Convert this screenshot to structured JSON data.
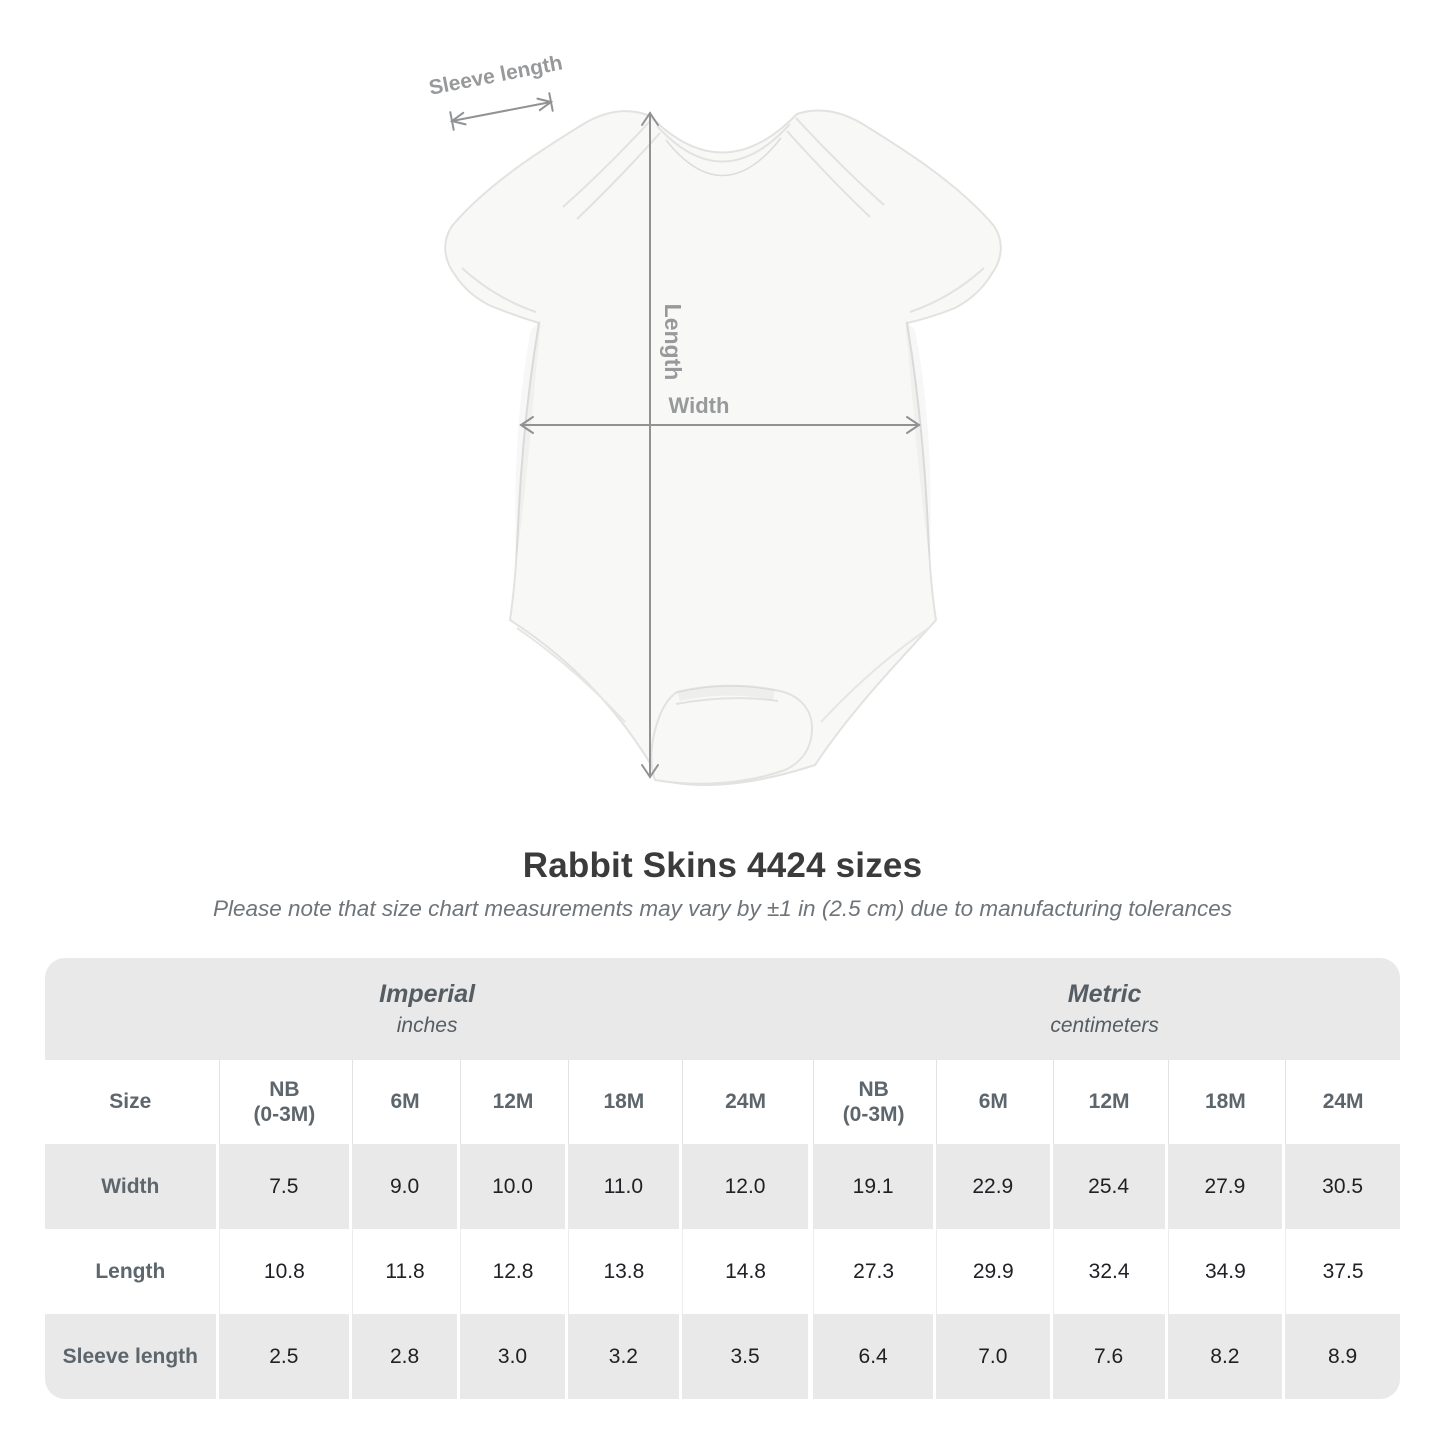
{
  "colors": {
    "table_shade": "#e9e9e9",
    "value_text": "#202124",
    "label_text": "#5d666c",
    "diagram_gray": "#97999b",
    "title_text": "#3b3b3b",
    "garment_fill": "#f8f8f7",
    "garment_line": "#e2e2e0"
  },
  "diagram": {
    "labels": {
      "sleeve": "Sleeve length",
      "length": "Length",
      "width": "Width"
    }
  },
  "heading": {
    "title": "Rabbit Skins 4424 sizes",
    "subtitle": "Please note that size chart measurements may vary by ±1 in (2.5 cm) due to manufacturing tolerances"
  },
  "size_table": {
    "unit_sections": [
      {
        "name": "Imperial",
        "unit": "inches"
      },
      {
        "name": "Metric",
        "unit": "centimeters"
      }
    ],
    "columns": [
      "Size",
      "NB\n(0-3M)",
      "6M",
      "12M",
      "18M",
      "24M",
      "NB\n(0-3M)",
      "6M",
      "12M",
      "18M",
      "24M"
    ],
    "rows": [
      {
        "label": "Width",
        "values": [
          "7.5",
          "9.0",
          "10.0",
          "11.0",
          "12.0",
          "19.1",
          "22.9",
          "25.4",
          "27.9",
          "30.5"
        ]
      },
      {
        "label": "Length",
        "values": [
          "10.8",
          "11.8",
          "12.8",
          "13.8",
          "14.8",
          "27.3",
          "29.9",
          "32.4",
          "34.9",
          "37.5"
        ]
      },
      {
        "label": "Sleeve length",
        "values": [
          "2.5",
          "2.8",
          "3.0",
          "3.2",
          "3.5",
          "6.4",
          "7.0",
          "7.6",
          "8.2",
          "8.9"
        ]
      }
    ]
  }
}
